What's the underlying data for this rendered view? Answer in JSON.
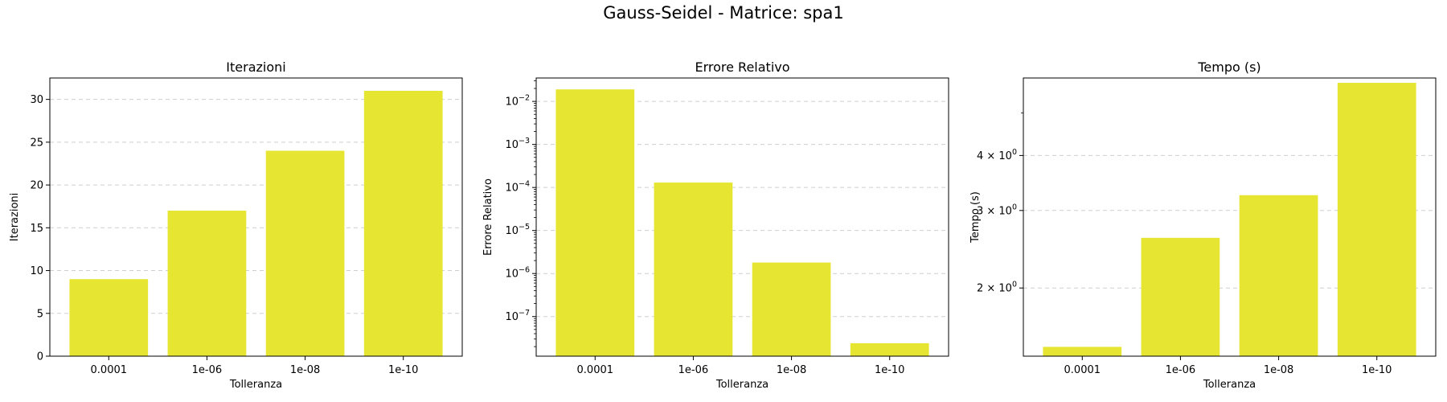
{
  "suptitle": "Gauss-Seidel - Matrice: spa1",
  "bar_color": "#e6e632",
  "chart_data": [
    {
      "type": "bar",
      "title": "Iterazioni",
      "xlabel": "Tolleranza",
      "ylabel": "Iterazioni",
      "categories": [
        "0.0001",
        "1e-06",
        "1e-08",
        "1e-10"
      ],
      "values": [
        9,
        17,
        24,
        31
      ],
      "yscale": "linear",
      "ylim": [
        0,
        32.5
      ],
      "yticks": [
        0,
        5,
        10,
        15,
        20,
        25,
        30
      ],
      "ytick_labels": [
        "0",
        "5",
        "10",
        "15",
        "20",
        "25",
        "30"
      ],
      "grid": "y-dashed"
    },
    {
      "type": "bar",
      "title": "Errore Relativo",
      "xlabel": "Tolleranza",
      "ylabel": "Errore Relativo",
      "categories": [
        "0.0001",
        "1e-06",
        "1e-08",
        "1e-10"
      ],
      "values": [
        0.019,
        0.00013,
        1.8e-06,
        2.4e-08
      ],
      "yscale": "log",
      "ylim": [
        1.2e-08,
        0.035
      ],
      "yticks": [
        1e-07,
        1e-06,
        1e-05,
        0.0001,
        0.001,
        0.01
      ],
      "ytick_labels": [
        {
          "base": "10",
          "exp": "−7"
        },
        {
          "base": "10",
          "exp": "−6"
        },
        {
          "base": "10",
          "exp": "−5"
        },
        {
          "base": "10",
          "exp": "−4"
        },
        {
          "base": "10",
          "exp": "−3"
        },
        {
          "base": "10",
          "exp": "−2"
        }
      ],
      "grid": "y-dashed"
    },
    {
      "type": "bar",
      "title": "Tempo (s)",
      "xlabel": "Tolleranza",
      "ylabel": "Tempo (s)",
      "categories": [
        "0.0001",
        "1e-06",
        "1e-08",
        "1e-10"
      ],
      "values": [
        1.47,
        2.6,
        3.25,
        5.85
      ],
      "yscale": "log",
      "ylim": [
        1.4,
        6.0
      ],
      "yticks": [
        2,
        3,
        4
      ],
      "ytick_labels": [
        {
          "base": "2 × 10",
          "exp": "0"
        },
        {
          "base": "3 × 10",
          "exp": "0"
        },
        {
          "base": "4 × 10",
          "exp": "0"
        }
      ],
      "grid": "y-dashed"
    }
  ]
}
